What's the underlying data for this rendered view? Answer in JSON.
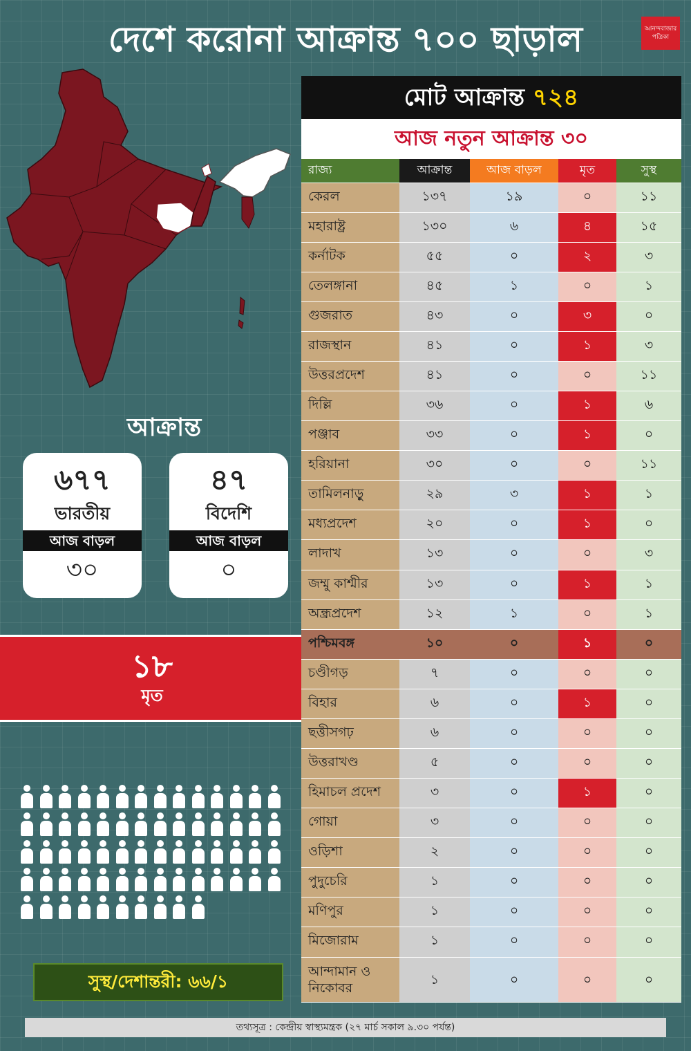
{
  "header": {
    "title": "দেশে করোনা আক্রান্ত ৭০০ ছাড়াল",
    "logo_text": "আনন্দবাজার পত্রিকা"
  },
  "colors": {
    "background": "#3d6a6c",
    "map_fill": "#7b1620",
    "highlight_red": "#d6202b",
    "total_number": "#ffd400"
  },
  "map": {
    "highlighted_states": [
      "West Bengal",
      "Jharkhand",
      "Sikkim",
      "Northeast states"
    ]
  },
  "affected": {
    "heading": "আক্রান্ত",
    "indian": {
      "number": "৬৭৭",
      "label": "ভারতীয়",
      "today_label": "আজ বাড়ল",
      "today": "৩০"
    },
    "foreign": {
      "number": "৪৭",
      "label": "বিদেশি",
      "today_label": "আজ বাড়ল",
      "today": "০"
    }
  },
  "deaths": {
    "number": "১৮",
    "label": "মৃত"
  },
  "figures_count": 66,
  "recovered": {
    "text": "সুস্থ/দেশান্তরী: ৬৬/১"
  },
  "totals": {
    "total_label": "মোট আক্রান্ত",
    "total_value": "৭২৪",
    "new_label": "আজ নতুন আক্রান্ত ৩০"
  },
  "table": {
    "headers": [
      "রাজ্য",
      "আক্রান্ত",
      "আজ বাড়ল",
      "মৃত",
      "সুস্থ"
    ],
    "rows": [
      [
        "কেরল",
        "১৩৭",
        "১৯",
        "০",
        "১১"
      ],
      [
        "মহারাষ্ট্র",
        "১৩০",
        "৬",
        "৪",
        "১৫"
      ],
      [
        "কর্নাটক",
        "৫৫",
        "০",
        "২",
        "৩"
      ],
      [
        "তেলঙ্গানা",
        "৪৫",
        "১",
        "০",
        "১"
      ],
      [
        "গুজরাত",
        "৪৩",
        "০",
        "৩",
        "০"
      ],
      [
        "রাজস্থান",
        "৪১",
        "০",
        "১",
        "৩"
      ],
      [
        "উত্তরপ্রদেশ",
        "৪১",
        "০",
        "০",
        "১১"
      ],
      [
        "দিল্লি",
        "৩৬",
        "০",
        "১",
        "৬"
      ],
      [
        "পঞ্জাব",
        "৩৩",
        "০",
        "১",
        "০"
      ],
      [
        "হরিয়ানা",
        "৩০",
        "০",
        "০",
        "১১"
      ],
      [
        "তামিলনাড়ু",
        "২৯",
        "৩",
        "১",
        "১"
      ],
      [
        "মধ্যপ্রদেশ",
        "২০",
        "০",
        "১",
        "০"
      ],
      [
        "লাদাখ",
        "১৩",
        "০",
        "০",
        "৩"
      ],
      [
        "জম্মু কাশ্মীর",
        "১৩",
        "০",
        "১",
        "১"
      ],
      [
        "অন্ধ্রপ্রদেশ",
        "১২",
        "১",
        "০",
        "১"
      ],
      [
        "পশ্চিমবঙ্গ",
        "১০",
        "০",
        "১",
        "০"
      ],
      [
        "চণ্ডীগড়",
        "৭",
        "০",
        "০",
        "০"
      ],
      [
        "বিহার",
        "৬",
        "০",
        "১",
        "০"
      ],
      [
        "ছত্তীসগঢ়",
        "৬",
        "০",
        "০",
        "০"
      ],
      [
        "উত্তরাখণ্ড",
        "৫",
        "০",
        "০",
        "০"
      ],
      [
        "হিমাচল প্রদেশ",
        "৩",
        "০",
        "১",
        "০"
      ],
      [
        "গোয়া",
        "৩",
        "০",
        "০",
        "০"
      ],
      [
        "ওড়িশা",
        "২",
        "০",
        "০",
        "০"
      ],
      [
        "পুদুচেরি",
        "১",
        "০",
        "০",
        "০"
      ],
      [
        "মণিপুর",
        "১",
        "০",
        "০",
        "০"
      ],
      [
        "মিজোরাম",
        "১",
        "০",
        "০",
        "০"
      ],
      [
        "আন্দামান ও নিকোবর",
        "১",
        "০",
        "০",
        "০"
      ]
    ],
    "highlight_row": 15
  },
  "source": "তথ্যসূত্র : কেন্দ্রীয় স্বাস্থ্যমন্ত্রক (২৭ মার্চ সকাল ৯.৩০ পর্যন্ত)"
}
